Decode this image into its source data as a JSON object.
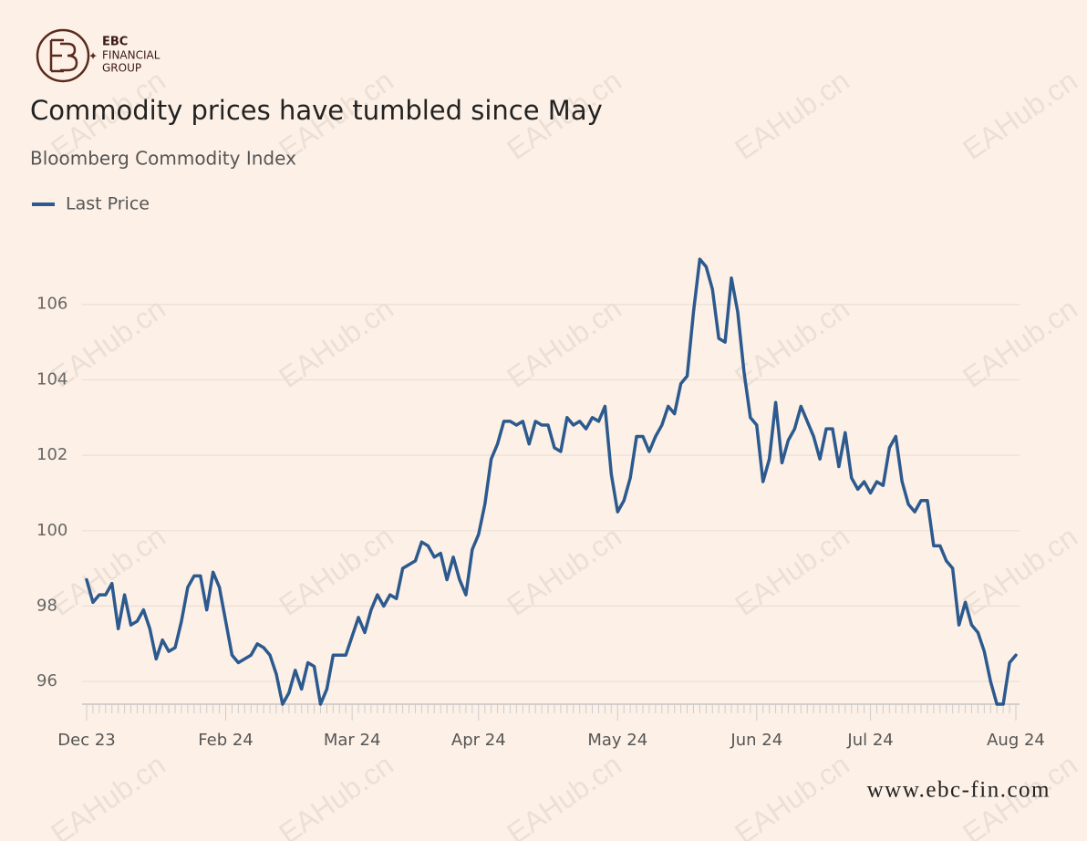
{
  "logo": {
    "brand": "EBC",
    "line2": "FINANCIAL",
    "line3": "GROUP"
  },
  "watermark": "EAHub.cn",
  "website": "www.ebc-fin.com",
  "chart_data": {
    "type": "line",
    "title": "Commodity prices have tumbled since May",
    "subtitle": "Bloomberg Commodity Index",
    "categories": [
      "Dec 23",
      null,
      null,
      null,
      null,
      null,
      null,
      null,
      null,
      null,
      null,
      null,
      null,
      null,
      null,
      null,
      null,
      null,
      null,
      null,
      null,
      null,
      "Feb 24",
      null,
      null,
      null,
      null,
      null,
      null,
      null,
      null,
      null,
      null,
      null,
      null,
      null,
      null,
      null,
      null,
      null,
      null,
      null,
      "Mar 24",
      null,
      null,
      null,
      null,
      null,
      null,
      null,
      null,
      null,
      null,
      null,
      null,
      null,
      null,
      null,
      null,
      null,
      null,
      null,
      "Apr 24",
      null,
      null,
      null,
      null,
      null,
      null,
      null,
      null,
      null,
      null,
      null,
      null,
      null,
      null,
      null,
      null,
      null,
      null,
      null,
      null,
      null,
      "May 24",
      null,
      null,
      null,
      null,
      null,
      null,
      null,
      null,
      null,
      null,
      null,
      null,
      null,
      null,
      null,
      null,
      null,
      null,
      null,
      null,
      null,
      "Jun 24",
      null,
      null,
      null,
      null,
      null,
      null,
      null,
      null,
      null,
      null,
      null,
      null,
      null,
      null,
      null,
      null,
      null,
      "Jul 24",
      null,
      null,
      null,
      null,
      null,
      null,
      null,
      null,
      null,
      null,
      null,
      null,
      null,
      null,
      null,
      null,
      null,
      null,
      null,
      null,
      null,
      null,
      "Aug 24"
    ],
    "series": [
      {
        "name": "Last Price",
        "color": "#2c5a8e",
        "values": [
          98.7,
          98.1,
          98.3,
          98.3,
          98.6,
          97.4,
          98.3,
          97.5,
          97.6,
          97.9,
          97.4,
          96.6,
          97.1,
          96.8,
          96.9,
          97.6,
          98.5,
          98.8,
          98.8,
          97.9,
          98.9,
          98.5,
          97.6,
          96.7,
          96.5,
          96.6,
          96.7,
          97.0,
          96.9,
          96.7,
          96.2,
          95.4,
          95.7,
          96.3,
          95.8,
          96.5,
          96.4,
          95.4,
          95.8,
          96.7,
          96.7,
          96.7,
          97.2,
          97.7,
          97.3,
          97.9,
          98.3,
          98.0,
          98.3,
          98.2,
          99.0,
          99.1,
          99.2,
          99.7,
          99.6,
          99.3,
          99.4,
          98.7,
          99.3,
          98.7,
          98.3,
          99.5,
          99.9,
          100.7,
          101.9,
          102.3,
          102.9,
          102.9,
          102.8,
          102.9,
          102.3,
          102.9,
          102.8,
          102.8,
          102.2,
          102.1,
          103.0,
          102.8,
          102.9,
          102.7,
          103.0,
          102.9,
          103.3,
          101.5,
          100.5,
          100.8,
          101.4,
          102.5,
          102.5,
          102.1,
          102.5,
          102.8,
          103.3,
          103.1,
          103.9,
          104.1,
          105.8,
          107.2,
          107.0,
          106.4,
          105.1,
          105.0,
          106.7,
          105.8,
          104.2,
          103.0,
          102.8,
          101.3,
          101.9,
          103.4,
          101.8,
          102.4,
          102.7,
          103.3,
          102.9,
          102.5,
          101.9,
          102.7,
          102.7,
          101.7,
          102.6,
          101.4,
          101.1,
          101.3,
          101.0,
          101.3,
          101.2,
          102.2,
          102.5,
          101.3,
          100.7,
          100.5,
          100.8,
          100.8,
          99.6,
          99.6,
          99.2,
          99.0,
          97.5,
          98.1,
          97.5,
          97.3,
          96.8,
          96.0,
          95.4,
          95.4,
          96.5,
          96.7
        ]
      }
    ],
    "ylim": [
      95.4,
      107.3
    ],
    "yticks": [
      96,
      98,
      100,
      102,
      104,
      106
    ],
    "grid": true
  }
}
